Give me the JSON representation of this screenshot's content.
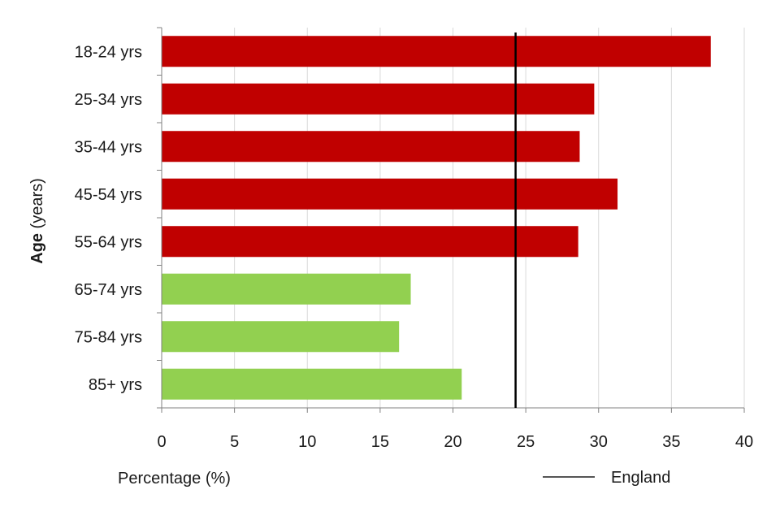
{
  "chart_data": {
    "type": "bar",
    "orientation": "horizontal",
    "categories": [
      "18-24 yrs",
      "25-34 yrs",
      "35-44 yrs",
      "45-54 yrs",
      "55-64 yrs",
      "65-74 yrs",
      "75-84 yrs",
      "85+  yrs"
    ],
    "values": [
      37.7,
      29.7,
      28.7,
      31.3,
      28.6,
      17.1,
      16.3,
      20.6
    ],
    "bar_colors": [
      "#c00000",
      "#c00000",
      "#c00000",
      "#c00000",
      "#c00000",
      "#92d050",
      "#92d050",
      "#92d050"
    ],
    "xlim": [
      0,
      40
    ],
    "xticks": [
      0,
      5,
      10,
      15,
      20,
      25,
      30,
      35,
      40
    ],
    "xlabel": "Percentage (%)",
    "ylabel_bold": "Age",
    "ylabel_rest": " (years)",
    "grid": "vertical",
    "reference_line": {
      "name": "England",
      "value": 24.3,
      "color": "#000000"
    },
    "legend": {
      "position": "bottom-right",
      "entries": [
        "England"
      ]
    }
  }
}
